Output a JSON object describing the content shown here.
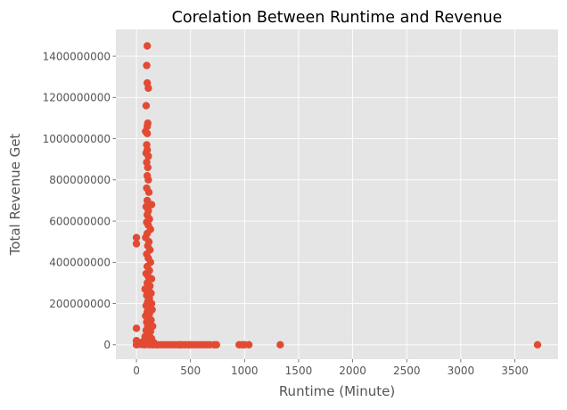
{
  "chart_data": {
    "type": "scatter",
    "title": "Corelation Between Runtime and Revenue",
    "xlabel": "Runtime (Minute)",
    "ylabel": "Total  Revenue Get",
    "xlim": [
      -190,
      3900
    ],
    "ylim": [
      -70000000,
      1530000000
    ],
    "xticks": [
      0,
      500,
      1000,
      1500,
      2000,
      2500,
      3000,
      3500
    ],
    "xtick_labels": [
      "0",
      "500",
      "1000",
      "1500",
      "2000",
      "2500",
      "3000",
      "3500"
    ],
    "yticks": [
      0,
      200000000,
      400000000,
      600000000,
      800000000,
      1000000000,
      1200000000,
      1400000000
    ],
    "ytick_labels": [
      "0",
      "200000000",
      "400000000",
      "600000000",
      "800000000",
      "1000000000",
      "1200000000",
      "1400000000"
    ],
    "grid": true,
    "marker_color": "#E24A33",
    "background_color": "#E5E5E5",
    "points": [
      [
        0,
        520000000
      ],
      [
        0,
        490000000
      ],
      [
        0,
        80000000
      ],
      [
        0,
        20000000
      ],
      [
        0,
        0
      ],
      [
        100,
        1450000000
      ],
      [
        95,
        1355000000
      ],
      [
        100,
        1270000000
      ],
      [
        110,
        1245000000
      ],
      [
        90,
        1160000000
      ],
      [
        105,
        1075000000
      ],
      [
        100,
        1060000000
      ],
      [
        85,
        1035000000
      ],
      [
        100,
        1025000000
      ],
      [
        95,
        970000000
      ],
      [
        100,
        945000000
      ],
      [
        90,
        930000000
      ],
      [
        110,
        915000000
      ],
      [
        95,
        885000000
      ],
      [
        105,
        860000000
      ],
      [
        100,
        820000000
      ],
      [
        110,
        800000000
      ],
      [
        95,
        760000000
      ],
      [
        115,
        740000000
      ],
      [
        100,
        700000000
      ],
      [
        120,
        680000000
      ],
      [
        140,
        680000000
      ],
      [
        90,
        670000000
      ],
      [
        110,
        650000000
      ],
      [
        100,
        630000000
      ],
      [
        120,
        610000000
      ],
      [
        95,
        595000000
      ],
      [
        110,
        580000000
      ],
      [
        130,
        560000000
      ],
      [
        100,
        540000000
      ],
      [
        85,
        520000000
      ],
      [
        115,
        500000000
      ],
      [
        105,
        480000000
      ],
      [
        125,
        460000000
      ],
      [
        95,
        440000000
      ],
      [
        110,
        420000000
      ],
      [
        130,
        400000000
      ],
      [
        100,
        380000000
      ],
      [
        120,
        360000000
      ],
      [
        90,
        345000000
      ],
      [
        110,
        330000000
      ],
      [
        140,
        320000000
      ],
      [
        100,
        300000000
      ],
      [
        125,
        285000000
      ],
      [
        80,
        270000000
      ],
      [
        115,
        260000000
      ],
      [
        135,
        250000000
      ],
      [
        95,
        240000000
      ],
      [
        120,
        225000000
      ],
      [
        105,
        210000000
      ],
      [
        140,
        200000000
      ],
      [
        90,
        190000000
      ],
      [
        110,
        180000000
      ],
      [
        130,
        170000000
      ],
      [
        145,
        170000000
      ],
      [
        100,
        160000000
      ],
      [
        120,
        150000000
      ],
      [
        85,
        140000000
      ],
      [
        110,
        130000000
      ],
      [
        135,
        120000000
      ],
      [
        95,
        110000000
      ],
      [
        125,
        100000000
      ],
      [
        105,
        90000000
      ],
      [
        150,
        90000000
      ],
      [
        115,
        80000000
      ],
      [
        90,
        70000000
      ],
      [
        130,
        65000000
      ],
      [
        100,
        55000000
      ],
      [
        120,
        45000000
      ],
      [
        80,
        40000000
      ],
      [
        110,
        35000000
      ],
      [
        140,
        30000000
      ],
      [
        95,
        25000000
      ],
      [
        125,
        20000000
      ],
      [
        60,
        15000000
      ],
      [
        105,
        12000000
      ],
      [
        160,
        10000000
      ],
      [
        75,
        8000000
      ],
      [
        135,
        6000000
      ],
      [
        115,
        4000000
      ],
      [
        20,
        3000000
      ],
      [
        40,
        2000000
      ],
      [
        60,
        1000000
      ],
      [
        80,
        0
      ],
      [
        120,
        0
      ],
      [
        150,
        0
      ],
      [
        180,
        0
      ],
      [
        200,
        0
      ],
      [
        230,
        0
      ],
      [
        260,
        0
      ],
      [
        290,
        0
      ],
      [
        320,
        0
      ],
      [
        350,
        0
      ],
      [
        380,
        0
      ],
      [
        400,
        0
      ],
      [
        420,
        0
      ],
      [
        450,
        0
      ],
      [
        480,
        0
      ],
      [
        500,
        0
      ],
      [
        530,
        0
      ],
      [
        560,
        0
      ],
      [
        590,
        0
      ],
      [
        620,
        0
      ],
      [
        650,
        0
      ],
      [
        680,
        0
      ],
      [
        720,
        0
      ],
      [
        740,
        0
      ],
      [
        950,
        0
      ],
      [
        980,
        0
      ],
      [
        1000,
        0
      ],
      [
        1040,
        0
      ],
      [
        1330,
        0
      ],
      [
        3710,
        0
      ]
    ]
  }
}
